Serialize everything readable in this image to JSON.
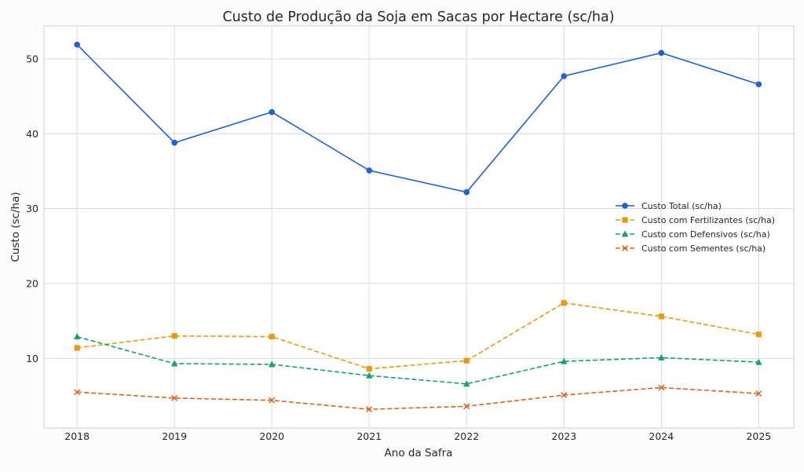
{
  "chart_data": {
    "type": "line",
    "title": "Custo de Produção da Soja em Sacas por Hectare (sc/ha)",
    "xlabel": "Ano da Safra",
    "ylabel": "Custo (sc/ha)",
    "x": [
      2018,
      2019,
      2020,
      2021,
      2022,
      2023,
      2024,
      2025
    ],
    "xlim": [
      2017.66,
      2025.36
    ],
    "ylim": [
      0.7,
      54.4
    ],
    "yticks": [
      10,
      20,
      30,
      40,
      50
    ],
    "grid": true,
    "legend_position": "center-right",
    "series": [
      {
        "name": "Custo Total (sc/ha)",
        "color": "#1f5fd8",
        "dash": false,
        "marker": "circle",
        "values": [
          51.9,
          38.8,
          42.9,
          35.1,
          32.2,
          47.7,
          50.8,
          46.6
        ]
      },
      {
        "name": "Custo com Fertilizantes (sc/ha)",
        "color": "#e69b12",
        "dash": true,
        "marker": "square",
        "values": [
          11.4,
          13.0,
          12.9,
          8.6,
          9.7,
          17.4,
          15.6,
          13.2
        ]
      },
      {
        "name": "Custo com Defensivos (sc/ha)",
        "color": "#169e74",
        "dash": true,
        "marker": "triangle",
        "values": [
          12.9,
          9.3,
          9.2,
          7.7,
          6.6,
          9.6,
          10.1,
          9.5
        ]
      },
      {
        "name": "Custo com Sementes (sc/ha)",
        "color": "#d9661c",
        "dash": true,
        "marker": "x",
        "values": [
          5.5,
          4.7,
          4.4,
          3.2,
          3.6,
          5.1,
          6.1,
          5.3
        ]
      }
    ]
  }
}
